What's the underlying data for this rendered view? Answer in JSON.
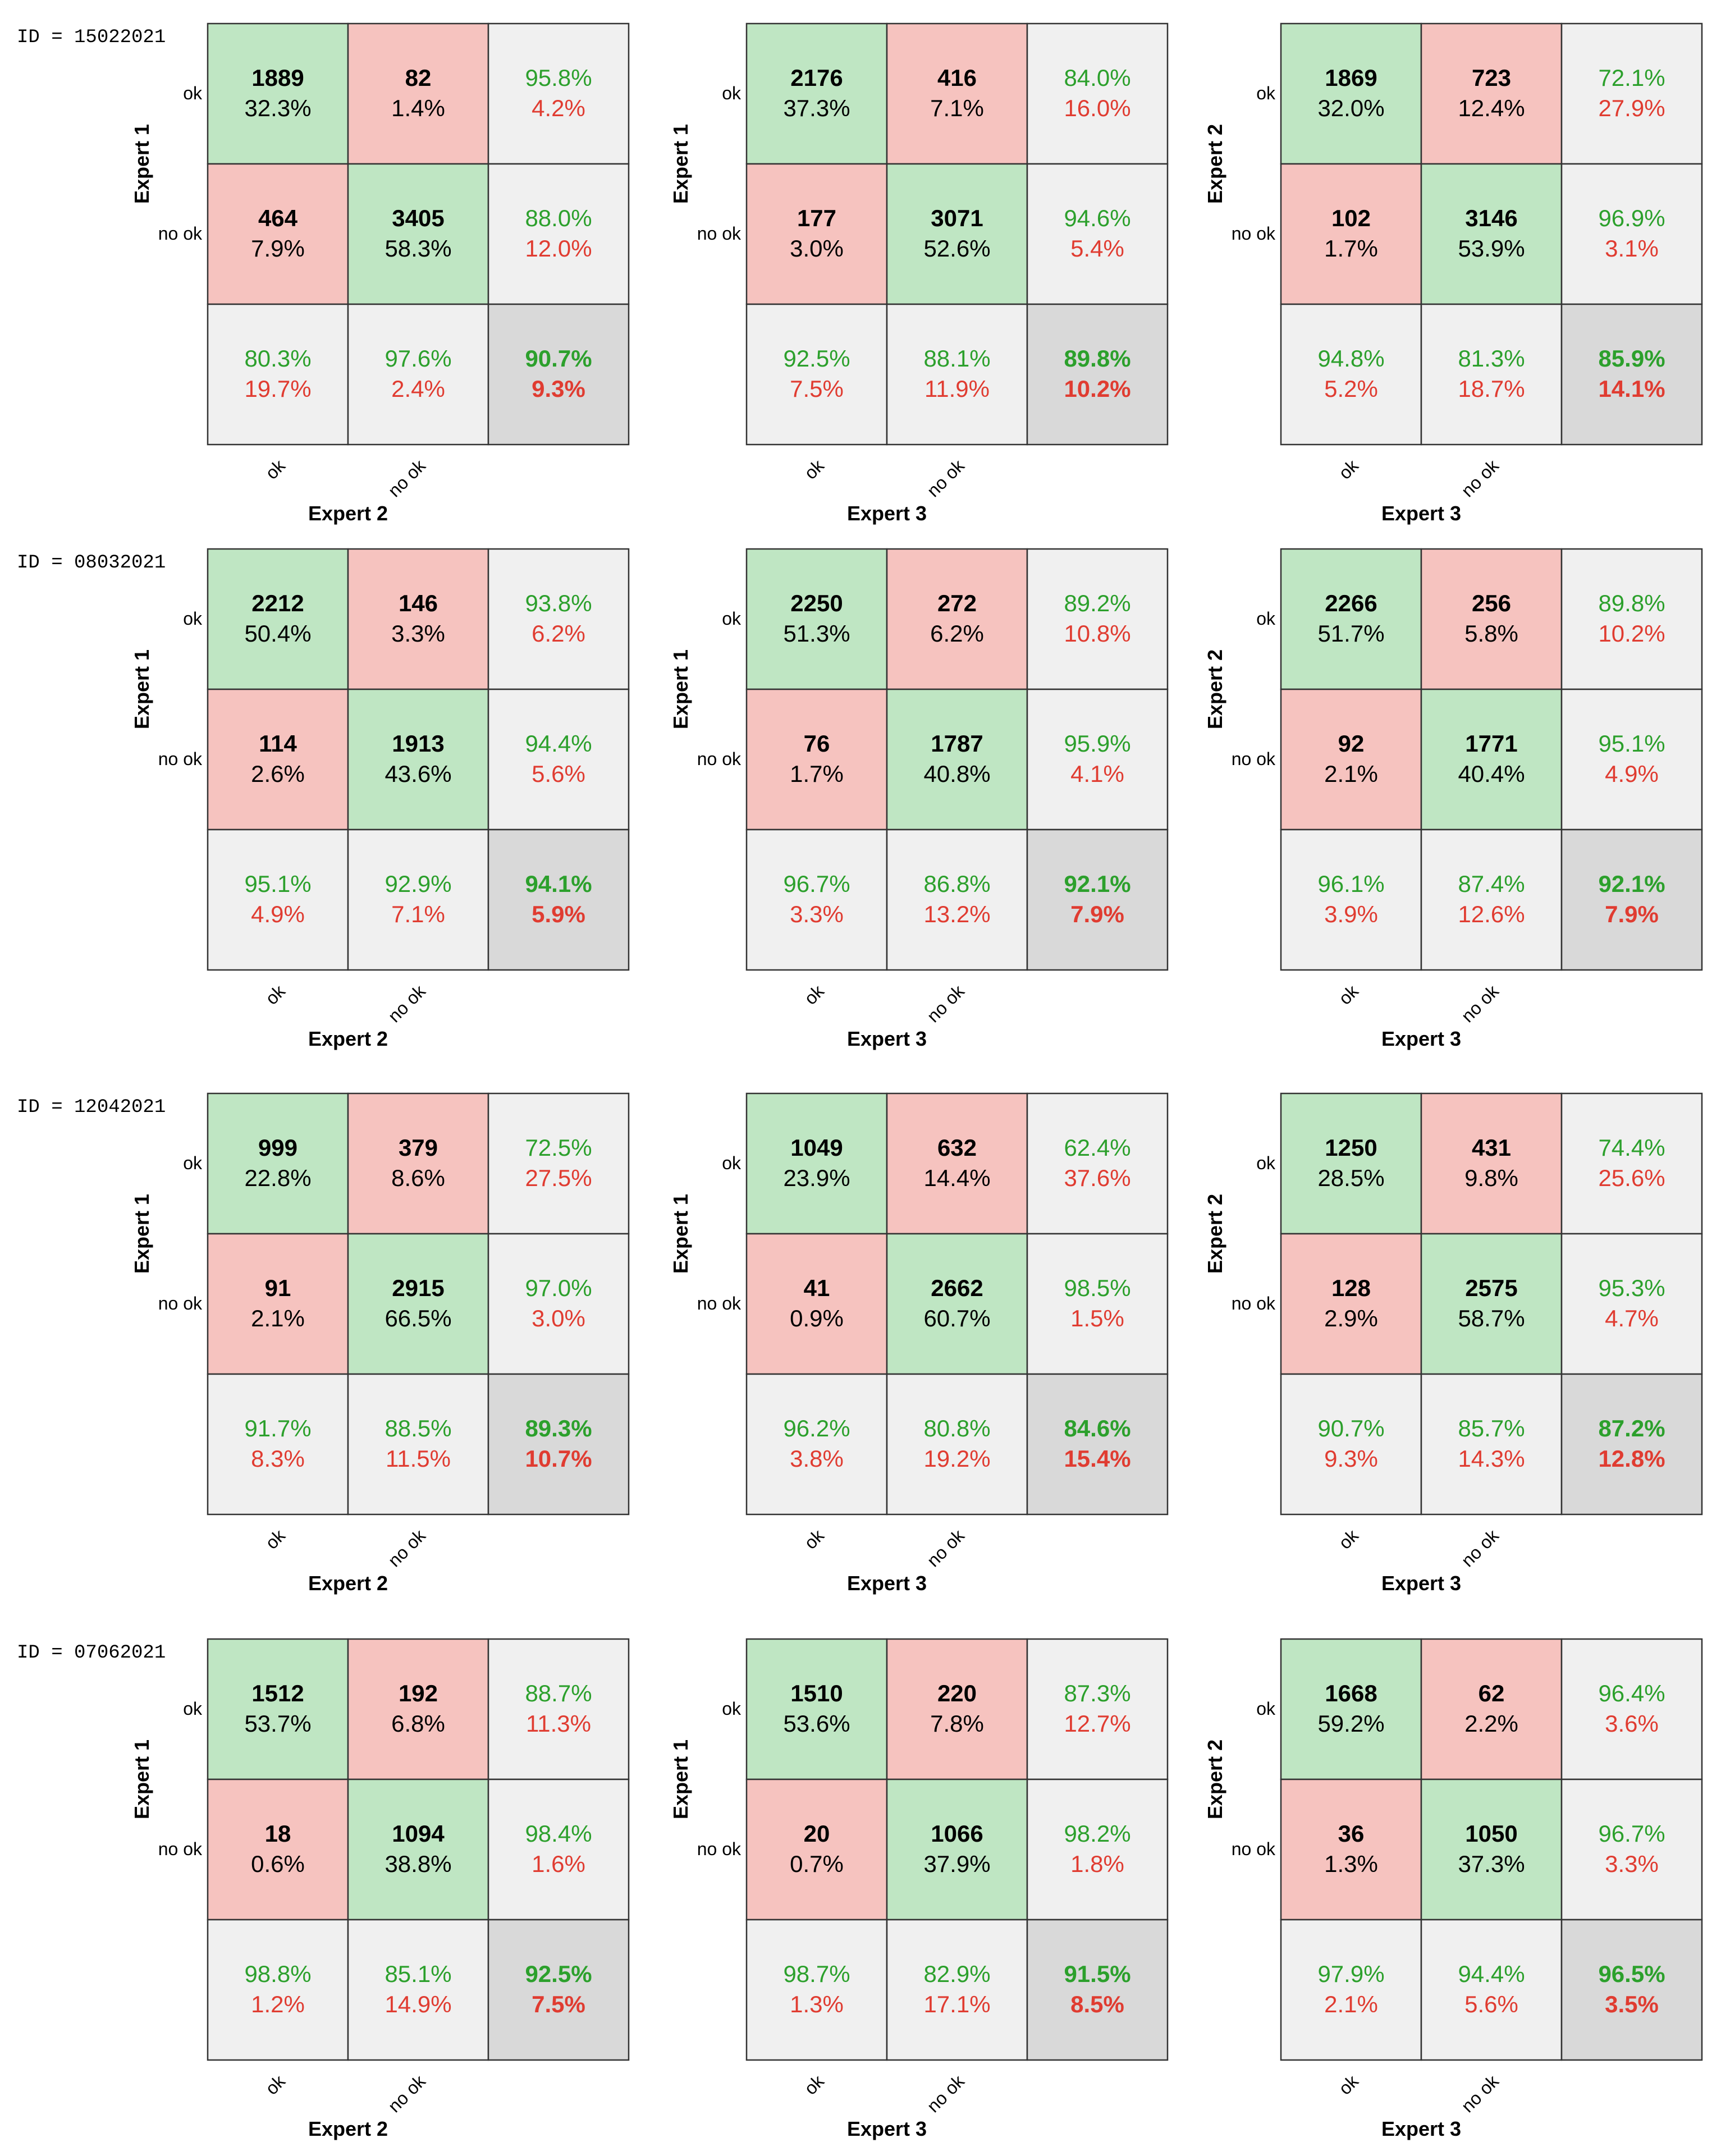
{
  "row_labels": [
    "ok",
    "no ok"
  ],
  "col_labels": [
    "ok",
    "no ok"
  ],
  "colors": {
    "correct_fill": "#bfe6c3",
    "incorrect_fill": "#f6c3bf",
    "summary_fill": "#f0f0f0",
    "total_fill": "#d9d9d9",
    "green_text": "#2ca02c",
    "red_text": "#e03c31",
    "border": "#333333"
  },
  "chart_data": [
    {
      "type": "heatmap",
      "id_label": "ID = 15022021",
      "matrices": [
        {
          "ylabel": "Expert 1",
          "xlabel": "Expert 2",
          "cells": [
            [
              {
                "count": "1889",
                "pct": "32.3%"
              },
              {
                "count": "82",
                "pct": "1.4%"
              }
            ],
            [
              {
                "count": "464",
                "pct": "7.9%"
              },
              {
                "count": "3405",
                "pct": "58.3%"
              }
            ]
          ],
          "row_summary": [
            [
              "95.8%",
              "4.2%"
            ],
            [
              "88.0%",
              "12.0%"
            ]
          ],
          "col_summary": [
            [
              "80.3%",
              "19.7%"
            ],
            [
              "97.6%",
              "2.4%"
            ]
          ],
          "total": [
            "90.7%",
            "9.3%"
          ]
        },
        {
          "ylabel": "Expert 1",
          "xlabel": "Expert 3",
          "cells": [
            [
              {
                "count": "2176",
                "pct": "37.3%"
              },
              {
                "count": "416",
                "pct": "7.1%"
              }
            ],
            [
              {
                "count": "177",
                "pct": "3.0%"
              },
              {
                "count": "3071",
                "pct": "52.6%"
              }
            ]
          ],
          "row_summary": [
            [
              "84.0%",
              "16.0%"
            ],
            [
              "94.6%",
              "5.4%"
            ]
          ],
          "col_summary": [
            [
              "92.5%",
              "7.5%"
            ],
            [
              "88.1%",
              "11.9%"
            ]
          ],
          "total": [
            "89.8%",
            "10.2%"
          ]
        },
        {
          "ylabel": "Expert 2",
          "xlabel": "Expert 3",
          "cells": [
            [
              {
                "count": "1869",
                "pct": "32.0%"
              },
              {
                "count": "723",
                "pct": "12.4%"
              }
            ],
            [
              {
                "count": "102",
                "pct": "1.7%"
              },
              {
                "count": "3146",
                "pct": "53.9%"
              }
            ]
          ],
          "row_summary": [
            [
              "72.1%",
              "27.9%"
            ],
            [
              "96.9%",
              "3.1%"
            ]
          ],
          "col_summary": [
            [
              "94.8%",
              "5.2%"
            ],
            [
              "81.3%",
              "18.7%"
            ]
          ],
          "total": [
            "85.9%",
            "14.1%"
          ]
        }
      ]
    },
    {
      "type": "heatmap",
      "id_label": "ID = 08032021",
      "matrices": [
        {
          "ylabel": "Expert 1",
          "xlabel": "Expert 2",
          "cells": [
            [
              {
                "count": "2212",
                "pct": "50.4%"
              },
              {
                "count": "146",
                "pct": "3.3%"
              }
            ],
            [
              {
                "count": "114",
                "pct": "2.6%"
              },
              {
                "count": "1913",
                "pct": "43.6%"
              }
            ]
          ],
          "row_summary": [
            [
              "93.8%",
              "6.2%"
            ],
            [
              "94.4%",
              "5.6%"
            ]
          ],
          "col_summary": [
            [
              "95.1%",
              "4.9%"
            ],
            [
              "92.9%",
              "7.1%"
            ]
          ],
          "total": [
            "94.1%",
            "5.9%"
          ]
        },
        {
          "ylabel": "Expert 1",
          "xlabel": "Expert 3",
          "cells": [
            [
              {
                "count": "2250",
                "pct": "51.3%"
              },
              {
                "count": "272",
                "pct": "6.2%"
              }
            ],
            [
              {
                "count": "76",
                "pct": "1.7%"
              },
              {
                "count": "1787",
                "pct": "40.8%"
              }
            ]
          ],
          "row_summary": [
            [
              "89.2%",
              "10.8%"
            ],
            [
              "95.9%",
              "4.1%"
            ]
          ],
          "col_summary": [
            [
              "96.7%",
              "3.3%"
            ],
            [
              "86.8%",
              "13.2%"
            ]
          ],
          "total": [
            "92.1%",
            "7.9%"
          ]
        },
        {
          "ylabel": "Expert 2",
          "xlabel": "Expert 3",
          "cells": [
            [
              {
                "count": "2266",
                "pct": "51.7%"
              },
              {
                "count": "256",
                "pct": "5.8%"
              }
            ],
            [
              {
                "count": "92",
                "pct": "2.1%"
              },
              {
                "count": "1771",
                "pct": "40.4%"
              }
            ]
          ],
          "row_summary": [
            [
              "89.8%",
              "10.2%"
            ],
            [
              "95.1%",
              "4.9%"
            ]
          ],
          "col_summary": [
            [
              "96.1%",
              "3.9%"
            ],
            [
              "87.4%",
              "12.6%"
            ]
          ],
          "total": [
            "92.1%",
            "7.9%"
          ]
        }
      ]
    },
    {
      "type": "heatmap",
      "id_label": "ID = 12042021",
      "matrices": [
        {
          "ylabel": "Expert 1",
          "xlabel": "Expert 2",
          "cells": [
            [
              {
                "count": "999",
                "pct": "22.8%"
              },
              {
                "count": "379",
                "pct": "8.6%"
              }
            ],
            [
              {
                "count": "91",
                "pct": "2.1%"
              },
              {
                "count": "2915",
                "pct": "66.5%"
              }
            ]
          ],
          "row_summary": [
            [
              "72.5%",
              "27.5%"
            ],
            [
              "97.0%",
              "3.0%"
            ]
          ],
          "col_summary": [
            [
              "91.7%",
              "8.3%"
            ],
            [
              "88.5%",
              "11.5%"
            ]
          ],
          "total": [
            "89.3%",
            "10.7%"
          ]
        },
        {
          "ylabel": "Expert 1",
          "xlabel": "Expert 3",
          "cells": [
            [
              {
                "count": "1049",
                "pct": "23.9%"
              },
              {
                "count": "632",
                "pct": "14.4%"
              }
            ],
            [
              {
                "count": "41",
                "pct": "0.9%"
              },
              {
                "count": "2662",
                "pct": "60.7%"
              }
            ]
          ],
          "row_summary": [
            [
              "62.4%",
              "37.6%"
            ],
            [
              "98.5%",
              "1.5%"
            ]
          ],
          "col_summary": [
            [
              "96.2%",
              "3.8%"
            ],
            [
              "80.8%",
              "19.2%"
            ]
          ],
          "total": [
            "84.6%",
            "15.4%"
          ]
        },
        {
          "ylabel": "Expert 2",
          "xlabel": "Expert 3",
          "cells": [
            [
              {
                "count": "1250",
                "pct": "28.5%"
              },
              {
                "count": "431",
                "pct": "9.8%"
              }
            ],
            [
              {
                "count": "128",
                "pct": "2.9%"
              },
              {
                "count": "2575",
                "pct": "58.7%"
              }
            ]
          ],
          "row_summary": [
            [
              "74.4%",
              "25.6%"
            ],
            [
              "95.3%",
              "4.7%"
            ]
          ],
          "col_summary": [
            [
              "90.7%",
              "9.3%"
            ],
            [
              "85.7%",
              "14.3%"
            ]
          ],
          "total": [
            "87.2%",
            "12.8%"
          ]
        }
      ]
    },
    {
      "type": "heatmap",
      "id_label": "ID = 07062021",
      "matrices": [
        {
          "ylabel": "Expert 1",
          "xlabel": "Expert 2",
          "cells": [
            [
              {
                "count": "1512",
                "pct": "53.7%"
              },
              {
                "count": "192",
                "pct": "6.8%"
              }
            ],
            [
              {
                "count": "18",
                "pct": "0.6%"
              },
              {
                "count": "1094",
                "pct": "38.8%"
              }
            ]
          ],
          "row_summary": [
            [
              "88.7%",
              "11.3%"
            ],
            [
              "98.4%",
              "1.6%"
            ]
          ],
          "col_summary": [
            [
              "98.8%",
              "1.2%"
            ],
            [
              "85.1%",
              "14.9%"
            ]
          ],
          "total": [
            "92.5%",
            "7.5%"
          ]
        },
        {
          "ylabel": "Expert 1",
          "xlabel": "Expert 3",
          "cells": [
            [
              {
                "count": "1510",
                "pct": "53.6%"
              },
              {
                "count": "220",
                "pct": "7.8%"
              }
            ],
            [
              {
                "count": "20",
                "pct": "0.7%"
              },
              {
                "count": "1066",
                "pct": "37.9%"
              }
            ]
          ],
          "row_summary": [
            [
              "87.3%",
              "12.7%"
            ],
            [
              "98.2%",
              "1.8%"
            ]
          ],
          "col_summary": [
            [
              "98.7%",
              "1.3%"
            ],
            [
              "82.9%",
              "17.1%"
            ]
          ],
          "total": [
            "91.5%",
            "8.5%"
          ]
        },
        {
          "ylabel": "Expert 2",
          "xlabel": "Expert 3",
          "cells": [
            [
              {
                "count": "1668",
                "pct": "59.2%"
              },
              {
                "count": "62",
                "pct": "2.2%"
              }
            ],
            [
              {
                "count": "36",
                "pct": "1.3%"
              },
              {
                "count": "1050",
                "pct": "37.3%"
              }
            ]
          ],
          "row_summary": [
            [
              "96.4%",
              "3.6%"
            ],
            [
              "96.7%",
              "3.3%"
            ]
          ],
          "col_summary": [
            [
              "97.9%",
              "2.1%"
            ],
            [
              "94.4%",
              "5.6%"
            ]
          ],
          "total": [
            "96.5%",
            "3.5%"
          ]
        }
      ]
    }
  ]
}
